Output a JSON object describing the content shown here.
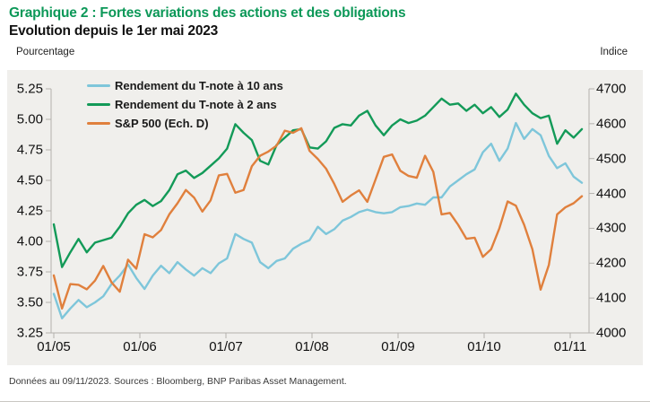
{
  "header": {
    "title": "Graphique 2 : Fortes variations des actions et des obligations",
    "subtitle": "Evolution depuis le 1er mai 2023",
    "title_color": "#0c9858"
  },
  "axis_captions": {
    "left": "Pourcentage",
    "right": "Indice"
  },
  "footer": {
    "note": "Données au 09/11/2023. Sources : Bloomberg, BNP Paribas Asset Management."
  },
  "chart_data": {
    "type": "line",
    "title": "Graphique 2 : Fortes variations des actions et des obligations",
    "subtitle": "Evolution depuis le 1er mai 2023",
    "grid": false,
    "plot_background": "#f0efec",
    "axis_color": "#b3b1ad",
    "legend_position": "top-left-inside",
    "x_tick_labels": [
      "01/05",
      "01/06",
      "01/07",
      "01/08",
      "01/09",
      "01/10",
      "01/11"
    ],
    "x_range_note": "daily data from 01/05/2023 to 09/11/2023, ~3-day sampling",
    "left_axis": {
      "label": "Pourcentage",
      "range": [
        3.25,
        5.25
      ],
      "tick_labels": [
        "5.25",
        "5.00",
        "4.75",
        "4.50",
        "4.25",
        "4.00",
        "3.75",
        "3.50",
        "3.25"
      ]
    },
    "right_axis": {
      "label": "Indice",
      "range": [
        4000,
        4700
      ],
      "tick_labels": [
        "4700",
        "4600",
        "4500",
        "4400",
        "4300",
        "4200",
        "4100",
        "4000"
      ]
    },
    "series": [
      {
        "name": "Rendement du T-note à 10 ans",
        "color": "#7ec6da",
        "axis": "left",
        "values": [
          3.57,
          3.37,
          3.45,
          3.52,
          3.46,
          3.5,
          3.55,
          3.65,
          3.72,
          3.81,
          3.7,
          3.61,
          3.72,
          3.8,
          3.74,
          3.83,
          3.77,
          3.72,
          3.78,
          3.74,
          3.82,
          3.86,
          4.06,
          4.02,
          3.99,
          3.83,
          3.78,
          3.84,
          3.86,
          3.94,
          3.98,
          4.01,
          4.12,
          4.06,
          4.1,
          4.17,
          4.2,
          4.24,
          4.26,
          4.24,
          4.23,
          4.24,
          4.28,
          4.29,
          4.31,
          4.3,
          4.36,
          4.36,
          4.45,
          4.5,
          4.55,
          4.59,
          4.73,
          4.8,
          4.66,
          4.76,
          4.97,
          4.84,
          4.92,
          4.87,
          4.7,
          4.6,
          4.64,
          4.53,
          4.48
        ]
      },
      {
        "name": "Rendement du T-note à 2 ans",
        "color": "#139a58",
        "axis": "left",
        "values": [
          4.14,
          3.79,
          3.91,
          4.02,
          3.91,
          3.99,
          4.01,
          4.03,
          4.12,
          4.23,
          4.3,
          4.34,
          4.29,
          4.33,
          4.42,
          4.55,
          4.58,
          4.52,
          4.56,
          4.62,
          4.68,
          4.76,
          4.96,
          4.89,
          4.83,
          4.66,
          4.63,
          4.79,
          4.85,
          4.91,
          4.92,
          4.77,
          4.76,
          4.82,
          4.93,
          4.96,
          4.95,
          5.03,
          5.07,
          4.95,
          4.87,
          4.95,
          5.0,
          4.97,
          4.99,
          5.03,
          5.1,
          5.17,
          5.12,
          5.13,
          5.07,
          5.12,
          5.05,
          5.1,
          5.02,
          5.08,
          5.21,
          5.12,
          5.05,
          5.01,
          5.03,
          4.8,
          4.91,
          4.85,
          4.92
        ]
      },
      {
        "name": "S&P 500 (Ech. D)",
        "color": "#e0803d",
        "axis": "right",
        "values": [
          4165,
          4070,
          4140,
          4138,
          4125,
          4150,
          4192,
          4145,
          4118,
          4210,
          4184,
          4283,
          4274,
          4295,
          4340,
          4372,
          4410,
          4388,
          4348,
          4380,
          4452,
          4456,
          4402,
          4410,
          4478,
          4508,
          4520,
          4537,
          4580,
          4574,
          4587,
          4522,
          4499,
          4471,
          4427,
          4376,
          4394,
          4409,
          4376,
          4440,
          4505,
          4512,
          4465,
          4450,
          4445,
          4508,
          4462,
          4340,
          4344,
          4310,
          4270,
          4273,
          4218,
          4240,
          4300,
          4377,
          4365,
          4310,
          4240,
          4124,
          4195,
          4340,
          4360,
          4372,
          4392
        ]
      }
    ]
  }
}
